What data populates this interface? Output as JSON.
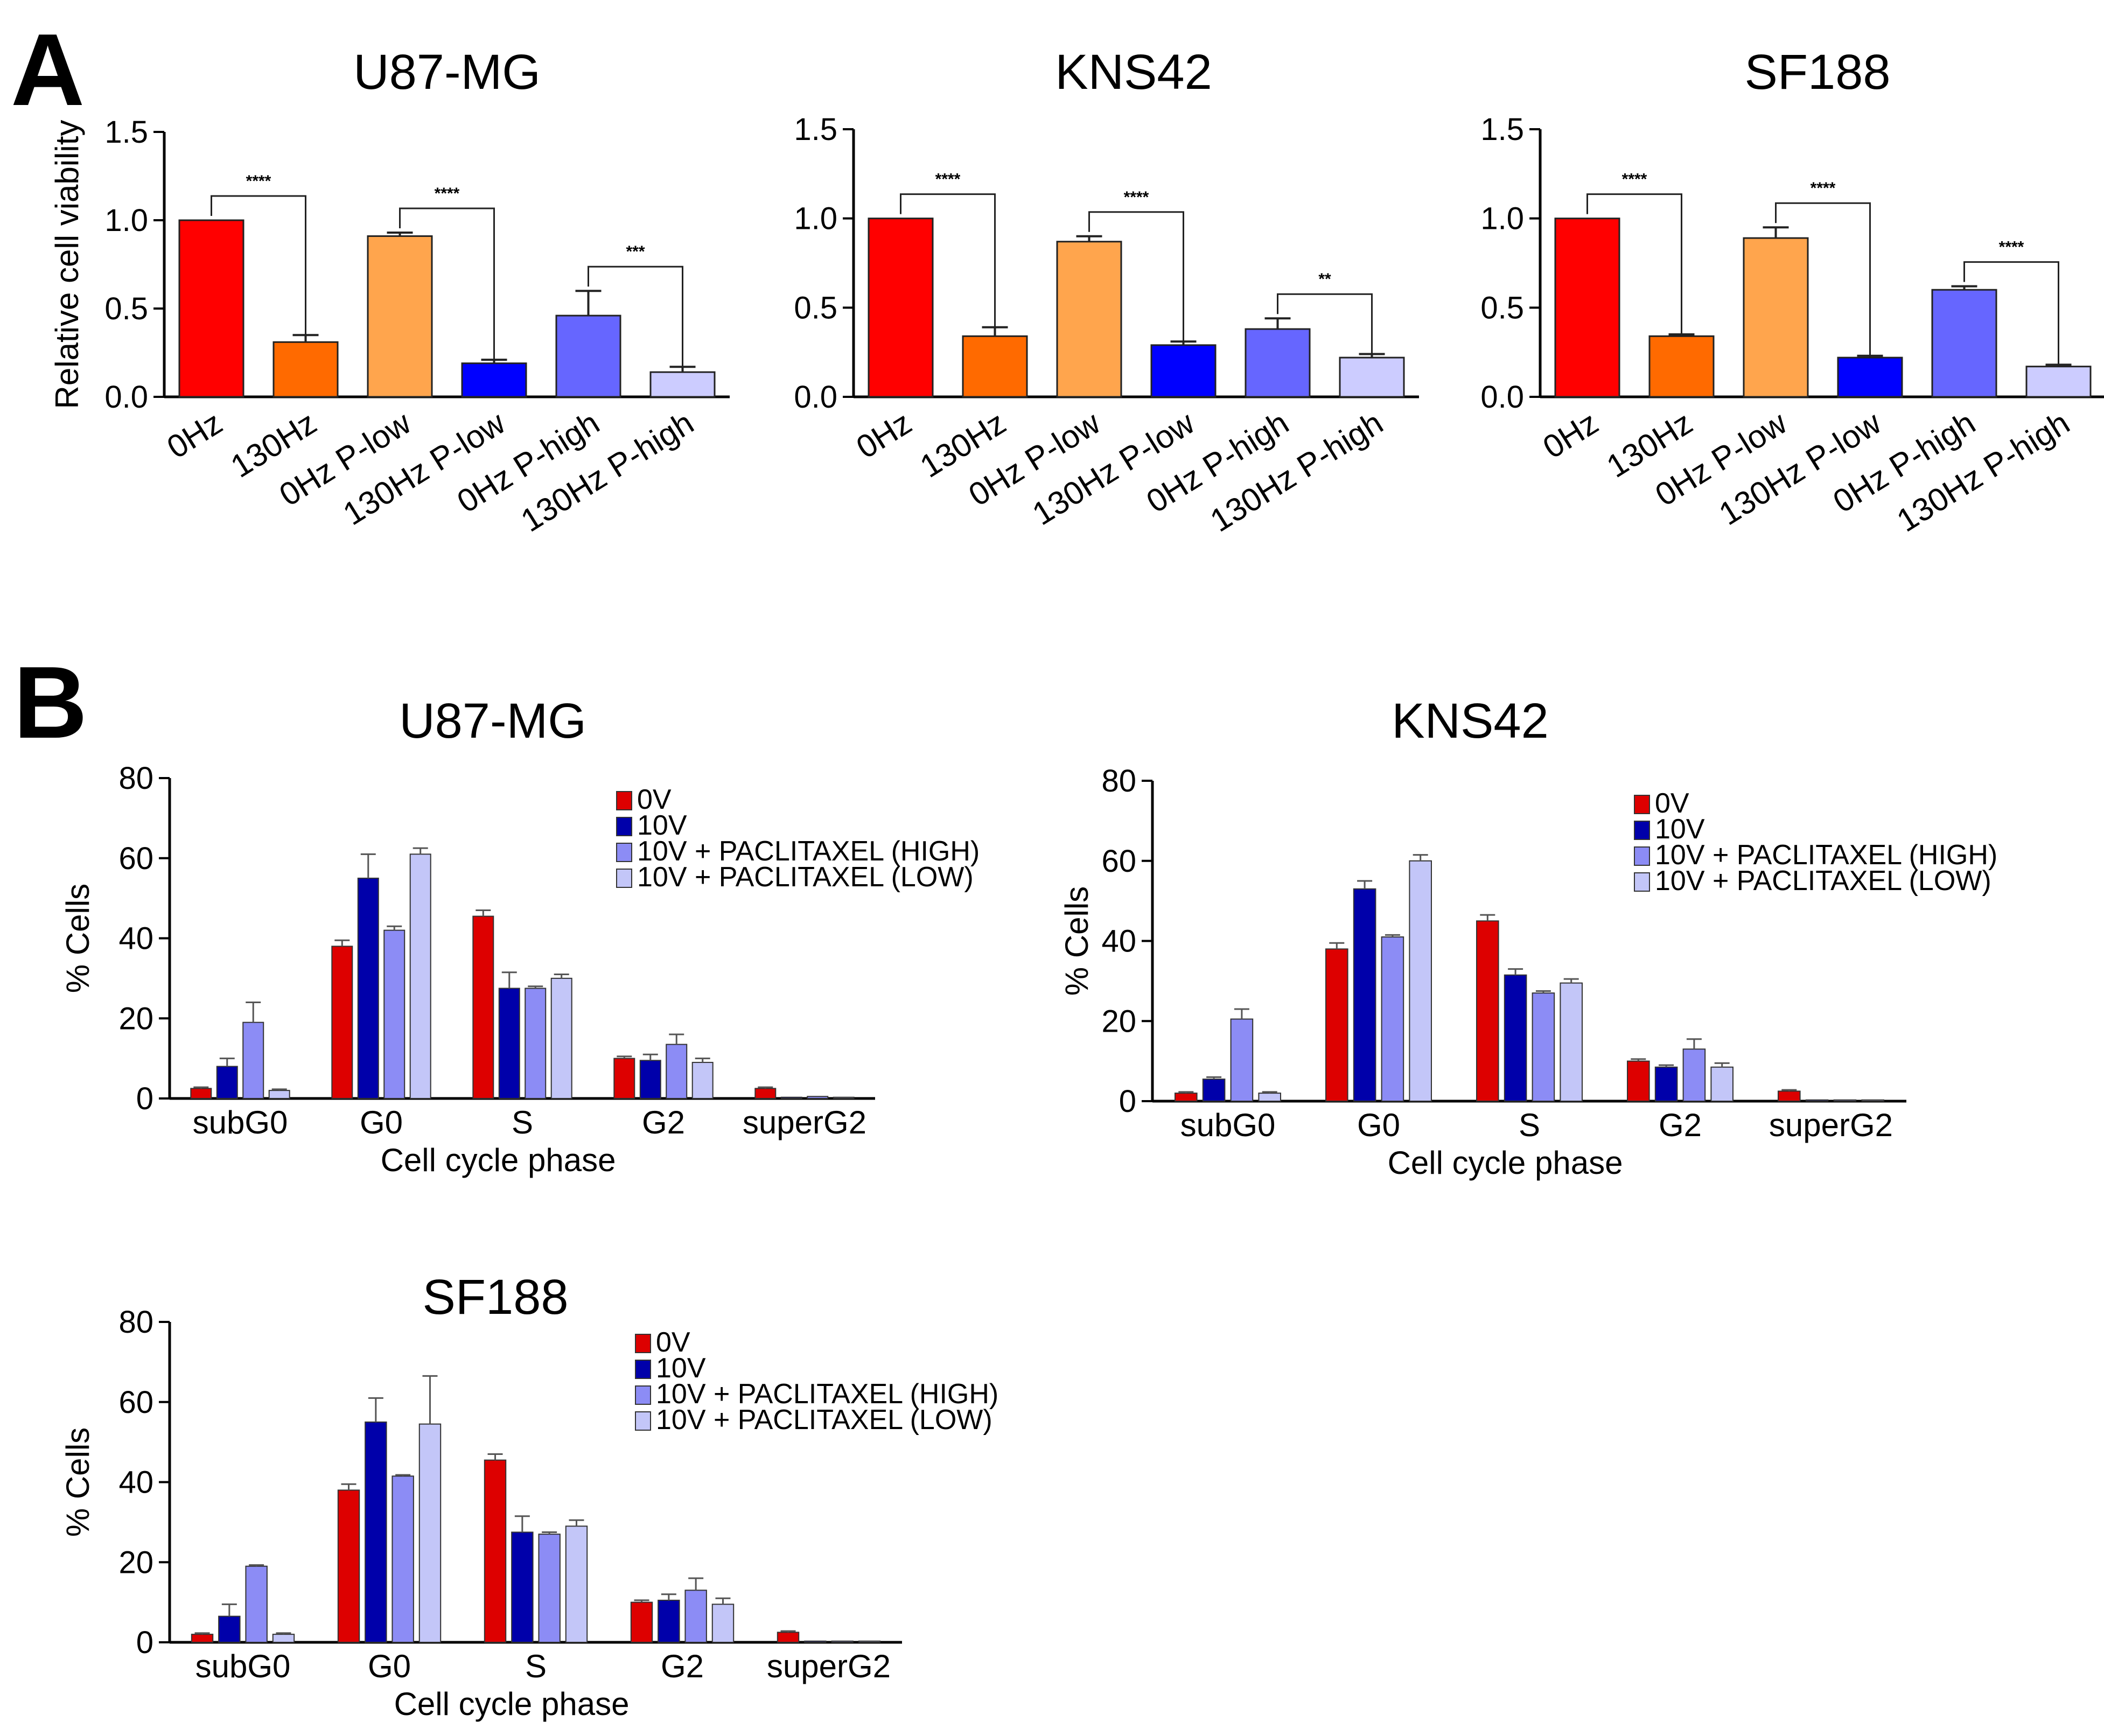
{
  "panels": {
    "a_label": "A",
    "b_label": "B"
  },
  "colors": {
    "red": "#ff0000",
    "orange": "#ff6a00",
    "light_orange": "#ffa54d",
    "blue": "#0000ff",
    "med_blue": "#6666ff",
    "pale_blue": "#ccccff",
    "dark_red": "#dd0000",
    "navy": "#0000aa",
    "periwinkle": "#8c8cf5",
    "lavender": "#c3c6f8"
  },
  "chart_data": [
    {
      "id": "A1",
      "type": "bar",
      "title": "U87-MG",
      "xlabel": "",
      "ylabel": "Relative cell viability",
      "ylim": [
        0,
        1.5
      ],
      "yticks": [
        "0.0",
        "0.5",
        "1.0",
        "1.5"
      ],
      "categories": [
        "0Hz",
        "130Hz",
        "0Hz P-low",
        "130Hz P-low",
        "0Hz P-high",
        "130Hz P-high"
      ],
      "values": [
        1.0,
        0.31,
        0.91,
        0.19,
        0.46,
        0.14
      ],
      "errors": [
        0,
        0.04,
        0.02,
        0.02,
        0.14,
        0.03
      ],
      "annotations": [
        {
          "from": 0,
          "to": 1,
          "text": "****"
        },
        {
          "from": 2,
          "to": 3,
          "text": "****"
        },
        {
          "from": 4,
          "to": 5,
          "text": "***"
        }
      ]
    },
    {
      "id": "A2",
      "type": "bar",
      "title": "KNS42",
      "xlabel": "",
      "ylabel": "",
      "ylim": [
        0,
        1.5
      ],
      "yticks": [
        "0.0",
        "0.5",
        "1.0",
        "1.5"
      ],
      "categories": [
        "0Hz",
        "130Hz",
        "0Hz P-low",
        "130Hz P-low",
        "0Hz P-high",
        "130Hz P-high"
      ],
      "values": [
        1.0,
        0.34,
        0.87,
        0.29,
        0.38,
        0.22
      ],
      "errors": [
        0,
        0.05,
        0.03,
        0.02,
        0.06,
        0.02
      ],
      "annotations": [
        {
          "from": 0,
          "to": 1,
          "text": "****"
        },
        {
          "from": 2,
          "to": 3,
          "text": "****"
        },
        {
          "from": 4,
          "to": 5,
          "text": "**"
        }
      ]
    },
    {
      "id": "A3",
      "type": "bar",
      "title": "SF188",
      "xlabel": "",
      "ylabel": "",
      "ylim": [
        0,
        1.5
      ],
      "yticks": [
        "0.0",
        "0.5",
        "1.0",
        "1.5"
      ],
      "categories": [
        "0Hz",
        "130Hz",
        "0Hz P-low",
        "130Hz P-low",
        "0Hz P-high",
        "130Hz P-high"
      ],
      "values": [
        1.0,
        0.34,
        0.89,
        0.22,
        0.6,
        0.17
      ],
      "errors": [
        0,
        0.01,
        0.06,
        0.01,
        0.02,
        0.01
      ],
      "annotations": [
        {
          "from": 0,
          "to": 1,
          "text": "****"
        },
        {
          "from": 2,
          "to": 3,
          "text": "****"
        },
        {
          "from": 4,
          "to": 5,
          "text": "****"
        }
      ]
    },
    {
      "id": "B1",
      "type": "bar",
      "title": "U87-MG",
      "xlabel": "Cell cycle phase",
      "ylabel": "% Cells",
      "ylim": [
        0,
        80
      ],
      "yticks": [
        "0",
        "20",
        "40",
        "60",
        "80"
      ],
      "categories": [
        "subG0",
        "G0",
        "S",
        "G2",
        "superG2"
      ],
      "series": [
        {
          "name": "0V",
          "values": [
            2.5,
            38,
            45.5,
            10,
            2.5
          ],
          "errors": [
            0.3,
            1.5,
            1.5,
            0.5,
            0.3
          ]
        },
        {
          "name": "10V",
          "values": [
            8,
            55,
            27.5,
            9.5,
            0.3
          ],
          "errors": [
            2,
            6,
            4,
            1.5,
            0
          ]
        },
        {
          "name": "10V + PACLITAXEL (HIGH)",
          "values": [
            19,
            42,
            27.5,
            13.5,
            0.5
          ],
          "errors": [
            5,
            1,
            0.5,
            2.5,
            0
          ]
        },
        {
          "name": "10V + PACLITAXEL (LOW)",
          "values": [
            2,
            61,
            30,
            9,
            0.3
          ],
          "errors": [
            0.3,
            1.5,
            1,
            1,
            0
          ]
        }
      ]
    },
    {
      "id": "B2",
      "type": "bar",
      "title": "KNS42",
      "xlabel": "Cell cycle phase",
      "ylabel": "% Cells",
      "ylim": [
        0,
        80
      ],
      "yticks": [
        "0",
        "20",
        "40",
        "60",
        "80"
      ],
      "categories": [
        "subG0",
        "G0",
        "S",
        "G2",
        "superG2"
      ],
      "series": [
        {
          "name": "0V",
          "values": [
            2,
            38,
            45,
            10,
            2.5
          ],
          "errors": [
            0.3,
            1.5,
            1.5,
            0.5,
            0.3
          ]
        },
        {
          "name": "10V",
          "values": [
            5.5,
            53,
            31.5,
            8.5,
            0.3
          ],
          "errors": [
            0.5,
            2,
            1.5,
            0.5,
            0
          ]
        },
        {
          "name": "10V + PACLITAXEL (HIGH)",
          "values": [
            20.5,
            41,
            27,
            13,
            0.3
          ],
          "errors": [
            2.5,
            0.5,
            0.5,
            2.5,
            0
          ]
        },
        {
          "name": "10V + PACLITAXEL (LOW)",
          "values": [
            2,
            60,
            29.5,
            8.5,
            0.3
          ],
          "errors": [
            0.3,
            1.5,
            1,
            1,
            0
          ]
        }
      ]
    },
    {
      "id": "B3",
      "type": "bar",
      "title": "SF188",
      "xlabel": "Cell cycle phase",
      "ylabel": "% Cells",
      "ylim": [
        0,
        80
      ],
      "yticks": [
        "0",
        "20",
        "40",
        "60",
        "80"
      ],
      "categories": [
        "subG0",
        "G0",
        "S",
        "G2",
        "superG2"
      ],
      "series": [
        {
          "name": "0V",
          "values": [
            2,
            38,
            45.5,
            10,
            2.5
          ],
          "errors": [
            0.3,
            1.5,
            1.5,
            0.5,
            0.3
          ]
        },
        {
          "name": "10V",
          "values": [
            6.5,
            55,
            27.5,
            10.5,
            0.3
          ],
          "errors": [
            3,
            6,
            4,
            1.5,
            0
          ]
        },
        {
          "name": "10V + PACLITAXEL (HIGH)",
          "values": [
            19,
            41.5,
            27,
            13,
            0.3
          ],
          "errors": [
            0.3,
            0.3,
            0.5,
            3,
            0
          ]
        },
        {
          "name": "10V + PACLITAXEL (LOW)",
          "values": [
            2,
            54.5,
            29,
            9.5,
            0.3
          ],
          "errors": [
            0.3,
            12,
            1.5,
            1.5,
            0
          ]
        }
      ]
    }
  ]
}
